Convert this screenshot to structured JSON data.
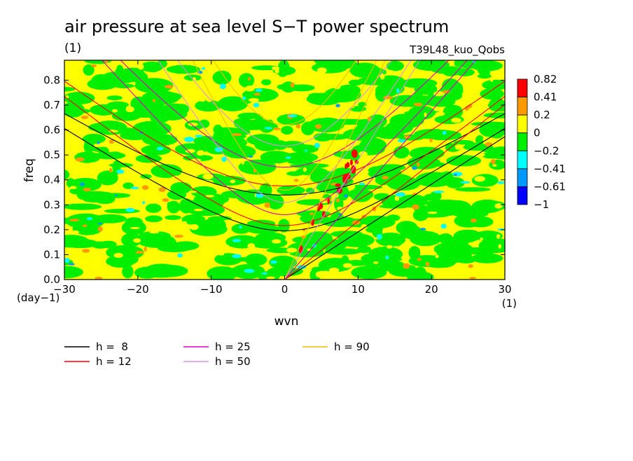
{
  "header": {
    "title": "air pressure at sea level S−T power spectrum",
    "unit": "(1)",
    "experiment": "T39L48_kuo_Qobs"
  },
  "chart_data": {
    "type": "heatmap",
    "title": "air pressure at sea level S−T power spectrum",
    "xlabel": "wvn",
    "xunit": "(1)",
    "ylabel": "freq",
    "yunit": "(day−1)",
    "xlim": [
      -30,
      30
    ],
    "ylim": [
      0,
      0.88
    ],
    "xticks": [
      -30,
      -20,
      -10,
      0,
      10,
      20,
      30
    ],
    "xtick_labels": [
      "−30",
      "−20",
      "−10",
      "0",
      "10",
      "20",
      "30"
    ],
    "yticks": [
      0.0,
      0.1,
      0.2,
      0.3,
      0.4,
      0.5,
      0.6,
      0.7,
      0.8
    ],
    "ytick_labels": [
      "0.0",
      "0.1",
      "0.2",
      "0.3",
      "0.4",
      "0.5",
      "0.6",
      "0.7",
      "0.8"
    ],
    "colorbar": {
      "levels": [
        "0.82",
        "0.41",
        "0.2",
        "0",
        "−0.2",
        "−0.41",
        "−0.61",
        "−1"
      ],
      "colors": [
        "#ff0000",
        "#ff9900",
        "#ffff00",
        "#00ee00",
        "#00ffff",
        "#0099ff",
        "#0000ff"
      ]
    },
    "dispersion_curves": [
      {
        "name": "h =  8",
        "color": "#000000"
      },
      {
        "name": "h = 12",
        "color": "#ff0000"
      },
      {
        "name": "h = 25",
        "color": "#e000c0"
      },
      {
        "name": "h = 50",
        "color": "#e090e0"
      },
      {
        "name": "h = 90",
        "color": "#f0c000"
      }
    ],
    "grid": false
  }
}
